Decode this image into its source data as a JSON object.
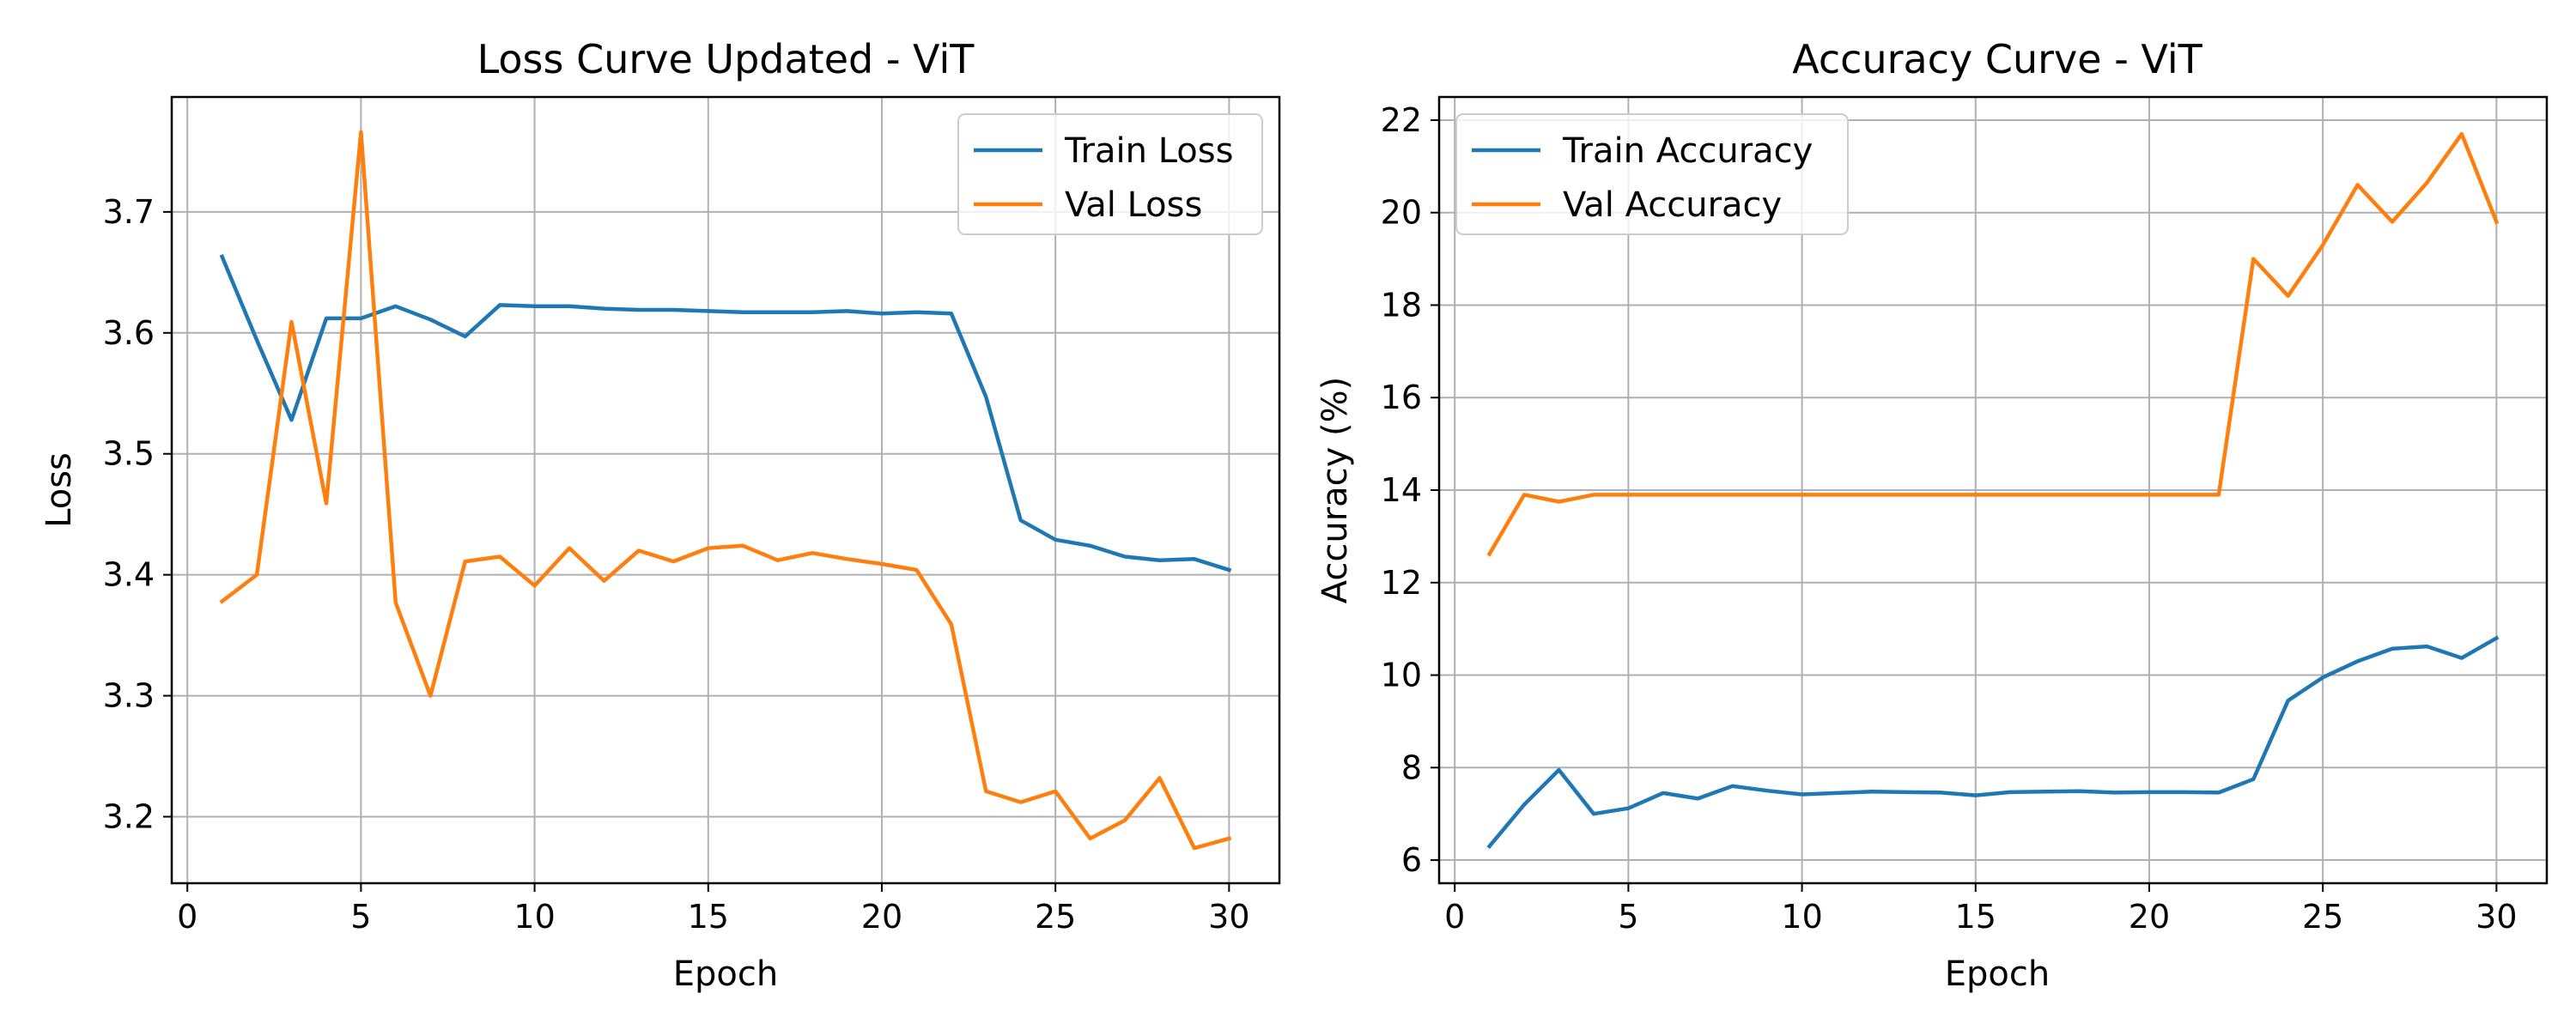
{
  "chart_data": [
    {
      "type": "line",
      "title": "Loss Curve Updated - ViT",
      "xlabel": "Epoch",
      "ylabel": "Loss",
      "xlim": [
        -0.45,
        31.45
      ],
      "ylim": [
        3.145,
        3.795
      ],
      "xticks": [
        0,
        5,
        10,
        15,
        20,
        25,
        30
      ],
      "yticks": [
        3.2,
        3.3,
        3.4,
        3.5,
        3.6,
        3.7
      ],
      "ytick_labels": [
        "3.2",
        "3.3",
        "3.4",
        "3.5",
        "3.6",
        "3.7"
      ],
      "grid": true,
      "legend_position": "top-right",
      "x": [
        1,
        2,
        3,
        4,
        5,
        6,
        7,
        8,
        9,
        10,
        11,
        12,
        13,
        14,
        15,
        16,
        17,
        18,
        19,
        20,
        21,
        22,
        23,
        24,
        25,
        26,
        27,
        28,
        29,
        30
      ],
      "series": [
        {
          "name": "Train Loss",
          "color": "#1f77b4",
          "values": [
            3.663,
            3.594,
            3.528,
            3.612,
            3.612,
            3.622,
            3.611,
            3.597,
            3.623,
            3.622,
            3.622,
            3.62,
            3.619,
            3.619,
            3.618,
            3.617,
            3.617,
            3.617,
            3.618,
            3.616,
            3.617,
            3.616,
            3.547,
            3.445,
            3.429,
            3.424,
            3.415,
            3.412,
            3.413,
            3.404
          ]
        },
        {
          "name": "Val Loss",
          "color": "#ff7f0e",
          "values": [
            3.378,
            3.4,
            3.609,
            3.459,
            3.766,
            3.377,
            3.3,
            3.411,
            3.415,
            3.391,
            3.422,
            3.395,
            3.42,
            3.411,
            3.422,
            3.424,
            3.412,
            3.418,
            3.413,
            3.409,
            3.404,
            3.359,
            3.221,
            3.212,
            3.221,
            3.182,
            3.197,
            3.232,
            3.174,
            3.182
          ]
        }
      ]
    },
    {
      "type": "line",
      "title": "Accuracy Curve - ViT",
      "xlabel": "Epoch",
      "ylabel": "Accuracy (%)",
      "xlim": [
        -0.45,
        31.45
      ],
      "ylim": [
        5.5,
        22.5
      ],
      "xticks": [
        0,
        5,
        10,
        15,
        20,
        25,
        30
      ],
      "yticks": [
        6,
        8,
        10,
        12,
        14,
        16,
        18,
        20,
        22
      ],
      "ytick_labels": [
        "6",
        "8",
        "10",
        "12",
        "14",
        "16",
        "18",
        "20",
        "22"
      ],
      "grid": true,
      "legend_position": "top-left",
      "x": [
        1,
        2,
        3,
        4,
        5,
        6,
        7,
        8,
        9,
        10,
        11,
        12,
        13,
        14,
        15,
        16,
        17,
        18,
        19,
        20,
        21,
        22,
        23,
        24,
        25,
        26,
        27,
        28,
        29,
        30
      ],
      "series": [
        {
          "name": "Train Accuracy",
          "color": "#1f77b4",
          "values": [
            6.3,
            7.2,
            7.95,
            7.0,
            7.12,
            7.45,
            7.33,
            7.6,
            7.5,
            7.42,
            7.45,
            7.48,
            7.47,
            7.46,
            7.4,
            7.47,
            7.48,
            7.49,
            7.46,
            7.47,
            7.47,
            7.46,
            7.75,
            9.45,
            9.95,
            10.3,
            10.57,
            10.62,
            10.37,
            10.8
          ]
        },
        {
          "name": "Val Accuracy",
          "color": "#ff7f0e",
          "values": [
            12.62,
            13.9,
            13.75,
            13.9,
            13.9,
            13.9,
            13.9,
            13.9,
            13.9,
            13.9,
            13.9,
            13.9,
            13.9,
            13.9,
            13.9,
            13.9,
            13.9,
            13.9,
            13.9,
            13.9,
            13.9,
            13.9,
            19.0,
            18.2,
            19.3,
            20.6,
            19.8,
            20.65,
            21.7,
            19.8
          ]
        }
      ]
    }
  ]
}
